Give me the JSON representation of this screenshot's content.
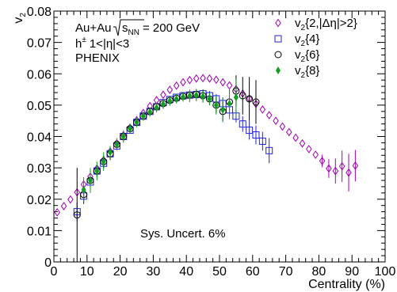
{
  "chart_data": {
    "type": "scatter",
    "xlabel": "Centrality (%)",
    "ylabel": "v₂",
    "xlim": [
      0,
      100
    ],
    "ylim": [
      0,
      0.08
    ],
    "x_ticks": [
      "0",
      "10",
      "20",
      "30",
      "40",
      "50",
      "60",
      "70",
      "80",
      "90",
      "100"
    ],
    "y_ticks": [
      "0",
      "0.01",
      "0.02",
      "0.03",
      "0.04",
      "0.05",
      "0.06",
      "0.07",
      "0.08"
    ],
    "grid": false,
    "legend_position": "top-right",
    "annotations": {
      "line1_prefix": "Au+Au",
      "line1_sqrt": "s",
      "line1_sub": "NN",
      "line1_suffix": "= 200 GeV",
      "line2_h": "h",
      "line2_sup": "±",
      "line2_rest": "1<|η|<3",
      "line3": "PHENIX",
      "sys_uncert": "Sys. Uncert. 6%"
    },
    "series": [
      {
        "name": "v₂{2,|Δη|>2}",
        "label_main": "v",
        "label_sub": "2",
        "label_rest": "{2,|Δη|>2}",
        "color": "#a000b4",
        "marker": "open-diamond",
        "x": [
          1,
          3,
          5,
          7,
          9,
          11,
          13,
          15,
          17,
          19,
          21,
          23,
          25,
          27,
          29,
          31,
          33,
          35,
          37,
          39,
          41,
          43,
          45,
          47,
          49,
          51,
          53,
          55,
          57,
          59,
          61,
          63,
          65,
          67,
          69,
          71,
          73,
          75,
          77,
          79,
          81,
          83,
          85,
          87,
          89,
          91
        ],
        "y": [
          0.0158,
          0.0178,
          0.0199,
          0.0222,
          0.0247,
          0.0272,
          0.0298,
          0.0325,
          0.0352,
          0.0378,
          0.0404,
          0.0428,
          0.0452,
          0.0475,
          0.0497,
          0.0516,
          0.0533,
          0.0549,
          0.0562,
          0.0573,
          0.058,
          0.0585,
          0.0586,
          0.0585,
          0.0581,
          0.0573,
          0.0563,
          0.0551,
          0.0537,
          0.0521,
          0.0504,
          0.0486,
          0.0468,
          0.045,
          0.0432,
          0.0414,
          0.0396,
          0.0378,
          0.036,
          0.0342,
          0.0322,
          0.0298,
          0.029,
          0.0305,
          0.0285,
          0.0307
        ],
        "err": [
          0,
          0,
          0,
          0,
          0,
          0,
          0,
          0,
          0,
          0,
          0,
          0,
          0,
          0,
          0,
          0,
          0,
          0,
          0,
          0,
          0,
          0,
          0,
          0,
          0,
          0,
          0,
          0,
          0,
          0,
          0,
          0,
          0,
          0,
          0,
          0,
          0,
          0,
          0,
          0,
          0.002,
          0.003,
          0.004,
          0.005,
          0.006,
          0.005
        ]
      },
      {
        "name": "v₂{4}",
        "label_main": "v",
        "label_sub": "2",
        "label_rest": "{4}",
        "color": "#2020e0",
        "marker": "open-square",
        "x": [
          7,
          9,
          11,
          13,
          15,
          17,
          19,
          21,
          23,
          25,
          27,
          29,
          31,
          33,
          35,
          37,
          39,
          41,
          43,
          45,
          47,
          49,
          51,
          53,
          55,
          57,
          59,
          61,
          63,
          65
        ],
        "y": [
          0.016,
          0.021,
          0.0255,
          0.029,
          0.0315,
          0.0345,
          0.037,
          0.04,
          0.042,
          0.0445,
          0.0465,
          0.048,
          0.0495,
          0.0508,
          0.0518,
          0.0525,
          0.053,
          0.0532,
          0.0534,
          0.0536,
          0.053,
          0.052,
          0.0505,
          0.0485,
          0.0465,
          0.044,
          0.042,
          0.0405,
          0.0385,
          0.0355
        ],
        "err": [
          0.003,
          0.002,
          0.002,
          0.0015,
          0.0015,
          0.0015,
          0.001,
          0.001,
          0.001,
          0.001,
          0.001,
          0.001,
          0.001,
          0.001,
          0.001,
          0.001,
          0.001,
          0.001,
          0.001,
          0.001,
          0.0015,
          0.0015,
          0.002,
          0.002,
          0.002,
          0.0025,
          0.003,
          0.003,
          0.003,
          0.004
        ]
      },
      {
        "name": "v₂{6}",
        "label_main": "v",
        "label_sub": "2",
        "label_rest": "{6}",
        "color": "#000000",
        "marker": "open-circle",
        "x": [
          7,
          9,
          11,
          13,
          15,
          17,
          19,
          21,
          23,
          25,
          27,
          29,
          31,
          33,
          35,
          37,
          39,
          41,
          43,
          45,
          47,
          49,
          51,
          53,
          55,
          57,
          59,
          61
        ],
        "y": [
          0.015,
          0.0215,
          0.026,
          0.029,
          0.032,
          0.0345,
          0.0375,
          0.04,
          0.0425,
          0.0445,
          0.0465,
          0.048,
          0.0495,
          0.0505,
          0.0515,
          0.0522,
          0.0528,
          0.0532,
          0.0534,
          0.053,
          0.052,
          0.05,
          0.048,
          0.051,
          0.0545,
          0.053,
          0.052,
          0.051
        ],
        "err": [
          0.015,
          0.003,
          0.003,
          0.002,
          0.002,
          0.002,
          0.0015,
          0.0015,
          0.0015,
          0.0015,
          0.001,
          0.001,
          0.001,
          0.001,
          0.001,
          0.001,
          0.001,
          0.001,
          0.0015,
          0.002,
          0.002,
          0.0025,
          0.003,
          0.004,
          0.005,
          0.006,
          0.007,
          0.007
        ]
      },
      {
        "name": "v₂{8}",
        "label_main": "v",
        "label_sub": "2",
        "label_rest": "{8}",
        "color": "#10a020",
        "marker": "filled-diamond",
        "x": [
          9,
          11,
          13,
          15,
          17,
          19,
          21,
          23,
          25,
          27,
          29,
          31,
          33,
          35,
          37,
          39,
          41,
          43,
          45,
          47,
          49,
          51,
          53,
          55
        ],
        "y": [
          0.023,
          0.026,
          0.029,
          0.032,
          0.035,
          0.0375,
          0.04,
          0.0425,
          0.0445,
          0.0465,
          0.0478,
          0.0492,
          0.0503,
          0.0513,
          0.052,
          0.0526,
          0.053,
          0.0532,
          0.0528,
          0.052,
          0.05,
          0.0485,
          0.0505,
          0.0525
        ],
        "err": [
          0.004,
          0.004,
          0.003,
          0.003,
          0.002,
          0.002,
          0.002,
          0.0015,
          0.0015,
          0.0015,
          0.0015,
          0.0015,
          0.0015,
          0.0015,
          0.0015,
          0.0015,
          0.002,
          0.002,
          0.002,
          0.002,
          0.003,
          0.004,
          0.005,
          0.006
        ]
      }
    ]
  }
}
